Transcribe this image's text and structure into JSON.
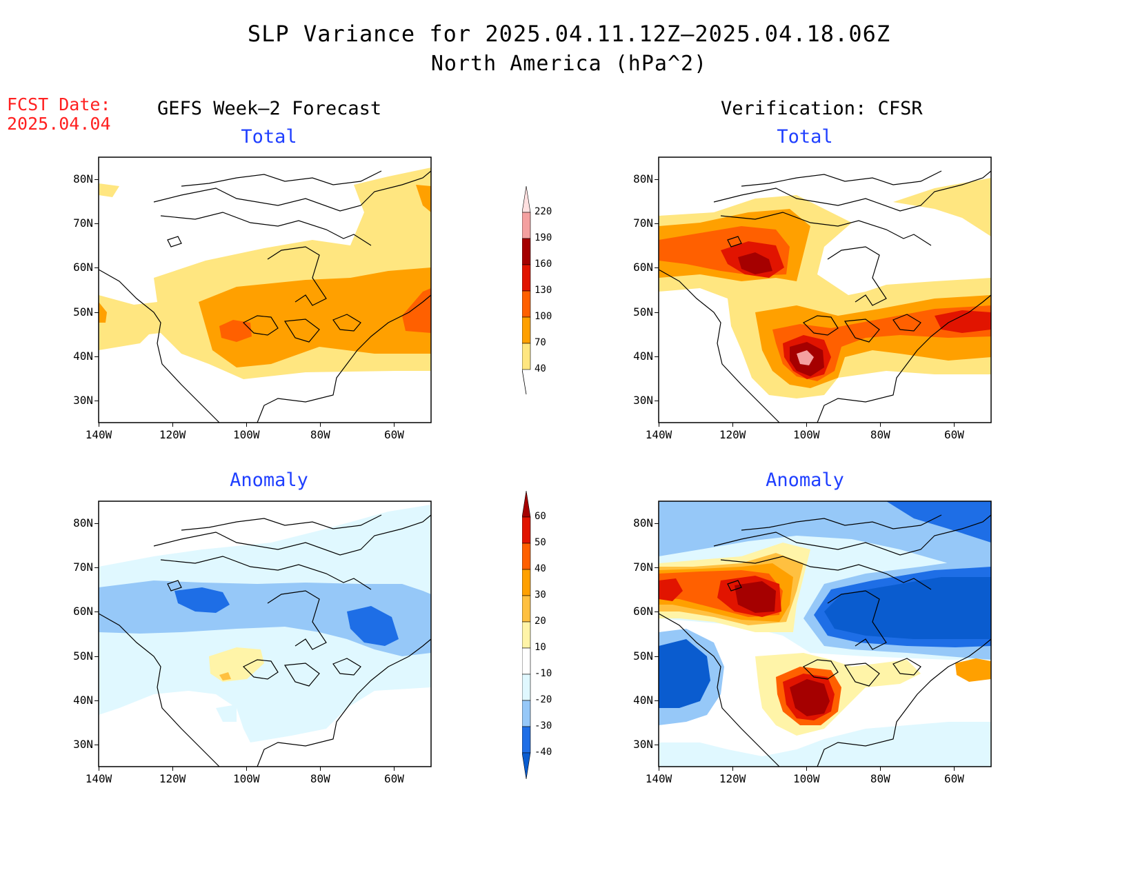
{
  "title": "SLP Variance for 2025.04.11.12Z–2025.04.18.06Z",
  "subtitle": "North America (hPa^2)",
  "fcst_date": {
    "label": "FCST Date:",
    "value": "2025.04.04"
  },
  "columns": {
    "left": "GEFS Week–2 Forecast",
    "right": "Verification: CFSR"
  },
  "panels": [
    {
      "id": "gefs-total",
      "title": "Total"
    },
    {
      "id": "cfsr-total",
      "title": "Total"
    },
    {
      "id": "gefs-anomaly",
      "title": "Anomaly"
    },
    {
      "id": "cfsr-anomaly",
      "title": "Anomaly"
    }
  ],
  "axes": {
    "lat_ticks": [
      "80N",
      "70N",
      "60N",
      "50N",
      "40N",
      "30N"
    ],
    "lat_values": [
      80,
      70,
      60,
      50,
      40,
      30
    ],
    "lon_ticks": [
      "140W",
      "120W",
      "100W",
      "80W",
      "60W"
    ],
    "lon_values": [
      -140,
      -120,
      -100,
      -80,
      -60
    ],
    "lon_range": [
      -140,
      -50
    ],
    "lat_range": [
      25,
      85
    ]
  },
  "colorbars": {
    "total": {
      "levels": [
        "40",
        "70",
        "100",
        "130",
        "160",
        "190",
        "220"
      ],
      "colors": [
        "#ffe680",
        "#ffa000",
        "#ff6000",
        "#e11400",
        "#a50000",
        "#f4a0a0",
        "#ffe0e0"
      ]
    },
    "anomaly": {
      "levels": [
        "-40",
        "-30",
        "-20",
        "-10",
        "10",
        "20",
        "30",
        "40",
        "50",
        "60"
      ],
      "colors": [
        "#0a5ccf",
        "#1e6ee6",
        "#96c8f8",
        "#e0f8ff",
        "#ffffff",
        "#fff4a8",
        "#ffc040",
        "#ffa000",
        "#ff6000",
        "#e11400",
        "#a50000"
      ]
    }
  },
  "chart_data": [
    {
      "type": "heatmap",
      "title": "Total",
      "panel": "GEFS Week–2 Forecast",
      "xlim": [
        -140,
        -50
      ],
      "ylim": [
        25,
        85
      ],
      "features": [
        {
          "level": 40,
          "lon": -80,
          "lat": 50,
          "note": "broad band 40-70 across central/east"
        },
        {
          "level": 70,
          "lon": -80,
          "lat": 47
        },
        {
          "level": 100,
          "lon": -103,
          "lat": 46
        },
        {
          "level": 100,
          "lon": -53,
          "lat": 50
        }
      ]
    },
    {
      "type": "heatmap",
      "title": "Total",
      "panel": "Verification: CFSR",
      "xlim": [
        -140,
        -50
      ],
      "ylim": [
        25,
        85
      ],
      "features": [
        {
          "level": 160,
          "lon": -112,
          "lat": 61
        },
        {
          "level": 220,
          "lon": -101,
          "lat": 40
        },
        {
          "level": 130,
          "lon": -55,
          "lat": 48
        }
      ]
    },
    {
      "type": "heatmap",
      "title": "Anomaly",
      "panel": "GEFS Week–2 Forecast",
      "xlim": [
        -140,
        -50
      ],
      "ylim": [
        25,
        85
      ],
      "features": [
        {
          "level": -30,
          "lon": -112,
          "lat": 63
        },
        {
          "level": -30,
          "lon": -67,
          "lat": 56
        },
        {
          "level": 10,
          "lon": -105,
          "lat": 48
        }
      ]
    },
    {
      "type": "heatmap",
      "title": "Anomaly",
      "panel": "Verification: CFSR",
      "xlim": [
        -140,
        -50
      ],
      "ylim": [
        25,
        85
      ],
      "features": [
        {
          "level": 60,
          "lon": -112,
          "lat": 61
        },
        {
          "level": 60,
          "lon": -101,
          "lat": 41
        },
        {
          "level": -40,
          "lon": -75,
          "lat": 60
        },
        {
          "level": -40,
          "lon": -132,
          "lat": 48
        }
      ]
    }
  ]
}
